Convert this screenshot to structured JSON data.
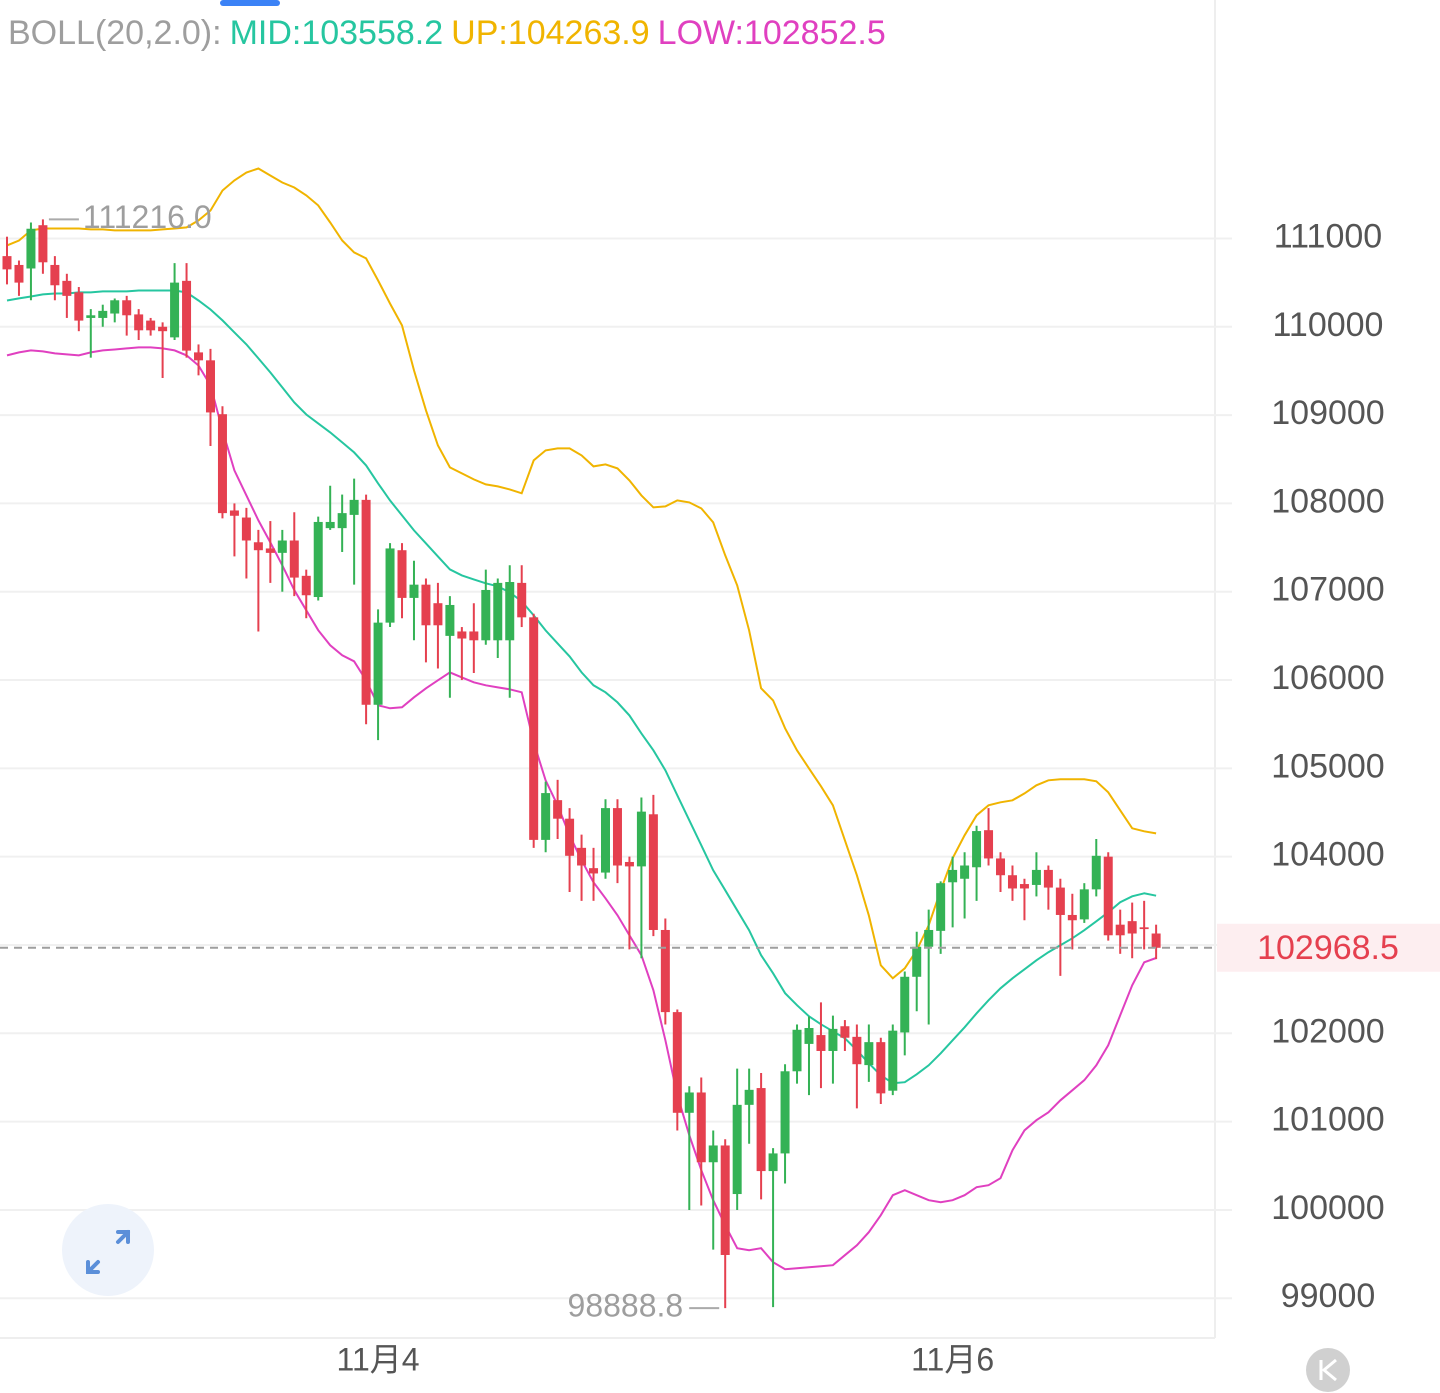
{
  "chart_data": {
    "type": "candlestick",
    "legend": [
      {
        "text": "BOLL(20,2.0):",
        "color": "#9e9e9e"
      },
      {
        "text": "MID:103558.2",
        "color": "#26c6a0"
      },
      {
        "text": "UP:104263.9",
        "color": "#f0b400"
      },
      {
        "text": "LOW:102852.5",
        "color": "#e040c0"
      }
    ],
    "categories": [
      null,
      null,
      null,
      null,
      null,
      null,
      null,
      null,
      null,
      null,
      null,
      null,
      null,
      null,
      null,
      null,
      null,
      null,
      null,
      null,
      null,
      null,
      null,
      null,
      null,
      null,
      null,
      null,
      null,
      null,
      null,
      "11月4",
      null,
      null,
      null,
      null,
      null,
      null,
      null,
      null,
      null,
      null,
      null,
      null,
      null,
      null,
      null,
      null,
      null,
      null,
      null,
      null,
      null,
      null,
      null,
      null,
      null,
      null,
      null,
      null,
      null,
      null,
      null,
      null,
      null,
      null,
      null,
      null,
      null,
      null,
      null,
      null,
      null,
      null,
      null,
      null,
      null,
      null,
      null,
      "11月6",
      null,
      null,
      null,
      null,
      null,
      null,
      null,
      null,
      null,
      null,
      null,
      null,
      null,
      null,
      null,
      null,
      null
    ],
    "open": [
      110800,
      110700,
      110660,
      111150,
      110700,
      110520,
      110390,
      110100,
      110100,
      110150,
      110300,
      110140,
      110070,
      110000,
      109880,
      110520,
      109710,
      109620,
      109010,
      107920,
      107840,
      107560,
      107490,
      107440,
      107580,
      107180,
      106940,
      107720,
      107720,
      107870,
      108040,
      105720,
      106650,
      107470,
      106930,
      107080,
      106870,
      106500,
      106550,
      106550,
      106450,
      106450,
      106450,
      107100,
      106710,
      104190,
      104640,
      104430,
      104100,
      103870,
      103820,
      104550,
      103940,
      103890,
      104480,
      103170,
      102240,
      101100,
      101330,
      100540,
      100730,
      100180,
      101190,
      101380,
      100440,
      100640,
      101570,
      101880,
      101980,
      101800,
      102080,
      101960,
      101640,
      101900,
      101350,
      102010,
      102640,
      102980,
      103160,
      103710,
      103750,
      103880,
      104300,
      103980,
      103790,
      103690,
      103680,
      103850,
      103650,
      103340,
      103290,
      103630,
      104000,
      103230,
      103270,
      103200,
      103130
    ],
    "high": [
      111020,
      110750,
      111180,
      111216,
      110800,
      110600,
      110450,
      110200,
      110250,
      110320,
      110350,
      110200,
      110100,
      110050,
      110720,
      110720,
      109800,
      109750,
      109100,
      108000,
      107950,
      107700,
      107800,
      107700,
      107900,
      107250,
      107850,
      108200,
      108100,
      108280,
      108100,
      106800,
      107550,
      107550,
      107350,
      107150,
      107100,
      106950,
      106600,
      106870,
      107250,
      107150,
      107300,
      107300,
      106750,
      104850,
      104870,
      104550,
      104250,
      104100,
      104650,
      104650,
      104000,
      104670,
      104700,
      103300,
      102270,
      101400,
      101500,
      100900,
      100800,
      101600,
      101600,
      101550,
      100700,
      101650,
      102100,
      102190,
      102350,
      102200,
      102150,
      102100,
      102100,
      101950,
      102100,
      102700,
      103150,
      103400,
      103720,
      104000,
      104050,
      104350,
      104550,
      104050,
      103900,
      103750,
      104050,
      103900,
      103750,
      103580,
      103700,
      104200,
      104050,
      103400,
      103480,
      103500,
      103230
    ],
    "low": [
      110480,
      110350,
      110300,
      110600,
      110300,
      110100,
      109950,
      109650,
      110000,
      110050,
      109900,
      109850,
      109900,
      109420,
      109850,
      109650,
      109450,
      108650,
      107830,
      107400,
      107150,
      106550,
      107100,
      107000,
      106950,
      106700,
      106900,
      107700,
      107450,
      107080,
      105500,
      105320,
      106600,
      106700,
      106450,
      106200,
      106130,
      105800,
      106000,
      106080,
      106400,
      106250,
      105800,
      106600,
      104100,
      104050,
      104200,
      103600,
      103500,
      103500,
      103750,
      103700,
      102950,
      102850,
      103100,
      102100,
      100900,
      100000,
      100050,
      99550,
      98888.8,
      100000,
      100750,
      100120,
      98900,
      100300,
      101430,
      101300,
      101380,
      101430,
      101800,
      101150,
      101450,
      101200,
      101300,
      101750,
      102250,
      102100,
      102900,
      103200,
      103300,
      103500,
      103900,
      103600,
      103500,
      103280,
      103550,
      103400,
      102650,
      102950,
      103250,
      103550,
      103050,
      102900,
      102850,
      102950,
      102840
    ],
    "close": [
      110650,
      110500,
      111110,
      110730,
      110470,
      110350,
      110070,
      110130,
      110180,
      110300,
      110130,
      109960,
      109960,
      109950,
      110500,
      109730,
      109620,
      109030,
      107890,
      107860,
      107580,
      107470,
      107440,
      107580,
      107160,
      106960,
      107790,
      107790,
      107890,
      108040,
      105720,
      106650,
      107490,
      106930,
      107080,
      106620,
      106620,
      106850,
      106470,
      106450,
      107020,
      107100,
      107110,
      106710,
      104190,
      104720,
      104430,
      104010,
      103900,
      103810,
      104550,
      103900,
      103890,
      104510,
      103170,
      102240,
      101100,
      101330,
      100540,
      100730,
      99490,
      101190,
      101360,
      100440,
      100640,
      101570,
      102040,
      102060,
      101800,
      102050,
      101950,
      101650,
      101900,
      101320,
      102030,
      102640,
      102980,
      103170,
      103700,
      103850,
      103900,
      104290,
      103980,
      103790,
      103640,
      103640,
      103850,
      103650,
      103340,
      103280,
      103630,
      104010,
      103110,
      103110,
      103130,
      103180,
      102968.5
    ],
    "up_color": "#34b255",
    "down_color": "#e5404f",
    "lines": [
      {
        "color": "#f0b400",
        "values": [
          110921,
          110977,
          111091,
          111113,
          111113,
          111113,
          111113,
          111102,
          111102,
          111091,
          111091,
          111091,
          111091,
          111102,
          111113,
          111125,
          111204,
          111317,
          111543,
          111657,
          111747,
          111792,
          111713,
          111634,
          111577,
          111487,
          111374,
          111181,
          110977,
          110842,
          110774,
          110524,
          110264,
          110015,
          109506,
          109053,
          108657,
          108408,
          108340,
          108272,
          108215,
          108193,
          108159,
          108114,
          108487,
          108600,
          108623,
          108623,
          108544,
          108419,
          108442,
          108396,
          108261,
          108091,
          107955,
          107966,
          108034,
          108011,
          107944,
          107785,
          107412,
          107072,
          106563,
          105906,
          105770,
          105453,
          105204,
          105000,
          104797,
          104582,
          104185,
          103789,
          103336,
          102770,
          102623,
          102736,
          102940,
          103223,
          103619,
          103982,
          104242,
          104468,
          104582,
          104616,
          104638,
          104717,
          104808,
          104865,
          104876,
          104876,
          104876,
          104853,
          104729,
          104525,
          104321,
          104287,
          104263.9
        ]
      },
      {
        "color": "#26c6a0",
        "values": [
          110298,
          110321,
          110343,
          110366,
          110377,
          110377,
          110389,
          110389,
          110400,
          110400,
          110400,
          110411,
          110411,
          110411,
          110411,
          110389,
          110298,
          110196,
          110072,
          109936,
          109800,
          109642,
          109483,
          109313,
          109143,
          109007,
          108906,
          108804,
          108691,
          108577,
          108430,
          108227,
          108034,
          107864,
          107694,
          107547,
          107400,
          107253,
          107185,
          107140,
          107095,
          107061,
          106993,
          106891,
          106732,
          106562,
          106415,
          106268,
          106087,
          105940,
          105861,
          105747,
          105600,
          105396,
          105204,
          104978,
          104695,
          104412,
          104129,
          103846,
          103620,
          103393,
          103167,
          102884,
          102680,
          102454,
          102318,
          102193,
          102102,
          102023,
          101944,
          101808,
          101661,
          101525,
          101435,
          101446,
          101536,
          101638,
          101774,
          101921,
          102068,
          102227,
          102374,
          102510,
          102623,
          102725,
          102827,
          102918,
          102997,
          103076,
          103167,
          103268,
          103370,
          103484,
          103551,
          103585,
          103558.2
        ]
      },
      {
        "color": "#e040c0",
        "values": [
          109676,
          109710,
          109732,
          109721,
          109698,
          109687,
          109676,
          109710,
          109732,
          109743,
          109755,
          109766,
          109766,
          109755,
          109732,
          109676,
          109562,
          109336,
          108827,
          108374,
          108091,
          107808,
          107559,
          107299,
          107017,
          106790,
          106564,
          106393,
          106280,
          106212,
          105997,
          105714,
          105680,
          105691,
          105804,
          105906,
          105997,
          106087,
          106030,
          105974,
          105940,
          105917,
          105895,
          105861,
          105295,
          104865,
          104582,
          104242,
          103959,
          103710,
          103529,
          103336,
          103110,
          102884,
          102487,
          101921,
          101299,
          100846,
          100450,
          100110,
          99827,
          99567,
          99544,
          99567,
          99408,
          99329,
          99340,
          99352,
          99363,
          99374,
          99487,
          99600,
          99748,
          99940,
          100167,
          100224,
          100167,
          100110,
          100088,
          100110,
          100167,
          100257,
          100280,
          100359,
          100676,
          100902,
          101016,
          101106,
          101242,
          101355,
          101469,
          101638,
          101864,
          102204,
          102544,
          102804,
          102852.5
        ]
      }
    ],
    "max_label": {
      "value": 111216,
      "label": "111216.0"
    },
    "min_label": 98888.8,
    "last_price": 102968.5,
    "ylim": [
      98550,
      113700
    ],
    "yticks": [
      99000,
      100000,
      101000,
      102000,
      103000,
      104000,
      105000,
      106000,
      107000,
      108000,
      109000,
      110000,
      111000
    ],
    "grid": true
  }
}
